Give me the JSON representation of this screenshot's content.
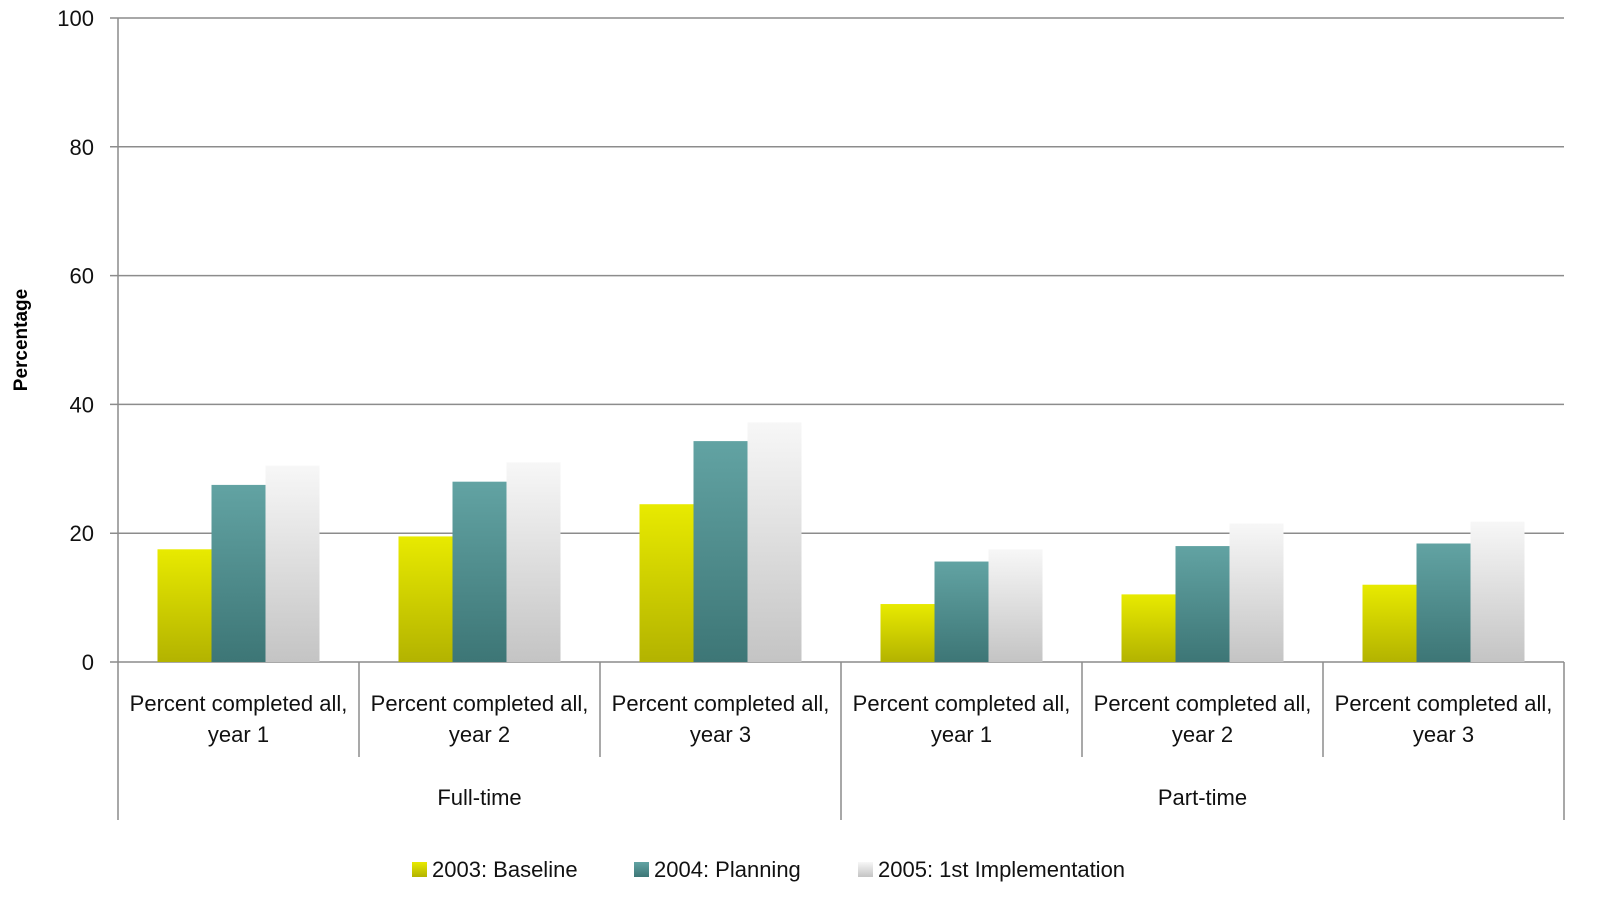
{
  "chart_data": {
    "type": "bar",
    "title": "",
    "ylabel": "Percentage",
    "xlabel": "",
    "ylim": [
      0,
      100
    ],
    "yticks": [
      0,
      20,
      40,
      60,
      80,
      100
    ],
    "grid": true,
    "legend_position": "bottom",
    "groups": [
      {
        "label": "Full-time",
        "categories": [
          {
            "line1": "Percent completed all,",
            "line2": "year 1"
          },
          {
            "line1": "Percent completed all,",
            "line2": "year 2"
          },
          {
            "line1": "Percent completed all,",
            "line2": "year 3"
          }
        ]
      },
      {
        "label": "Part-time",
        "categories": [
          {
            "line1": "Percent completed all,",
            "line2": "year 1"
          },
          {
            "line1": "Percent completed all,",
            "line2": "year 2"
          },
          {
            "line1": "Percent completed all,",
            "line2": "year 3"
          }
        ]
      }
    ],
    "series": [
      {
        "name": "2003: Baseline",
        "color_top": "#e8ea00",
        "color_bottom": "#b3b300",
        "values": [
          17.5,
          19.5,
          24.5,
          9,
          10.5,
          12
        ]
      },
      {
        "name": "2004: Planning",
        "color_top": "#62a3a3",
        "color_bottom": "#3d7676",
        "values": [
          27.5,
          28,
          34.3,
          15.6,
          18,
          18.4
        ]
      },
      {
        "name": "2005: 1st Implementation",
        "color_top": "#f7f7f7",
        "color_bottom": "#c4c4c4",
        "values": [
          30.5,
          31,
          37.2,
          17.5,
          21.5,
          21.8
        ]
      }
    ]
  }
}
